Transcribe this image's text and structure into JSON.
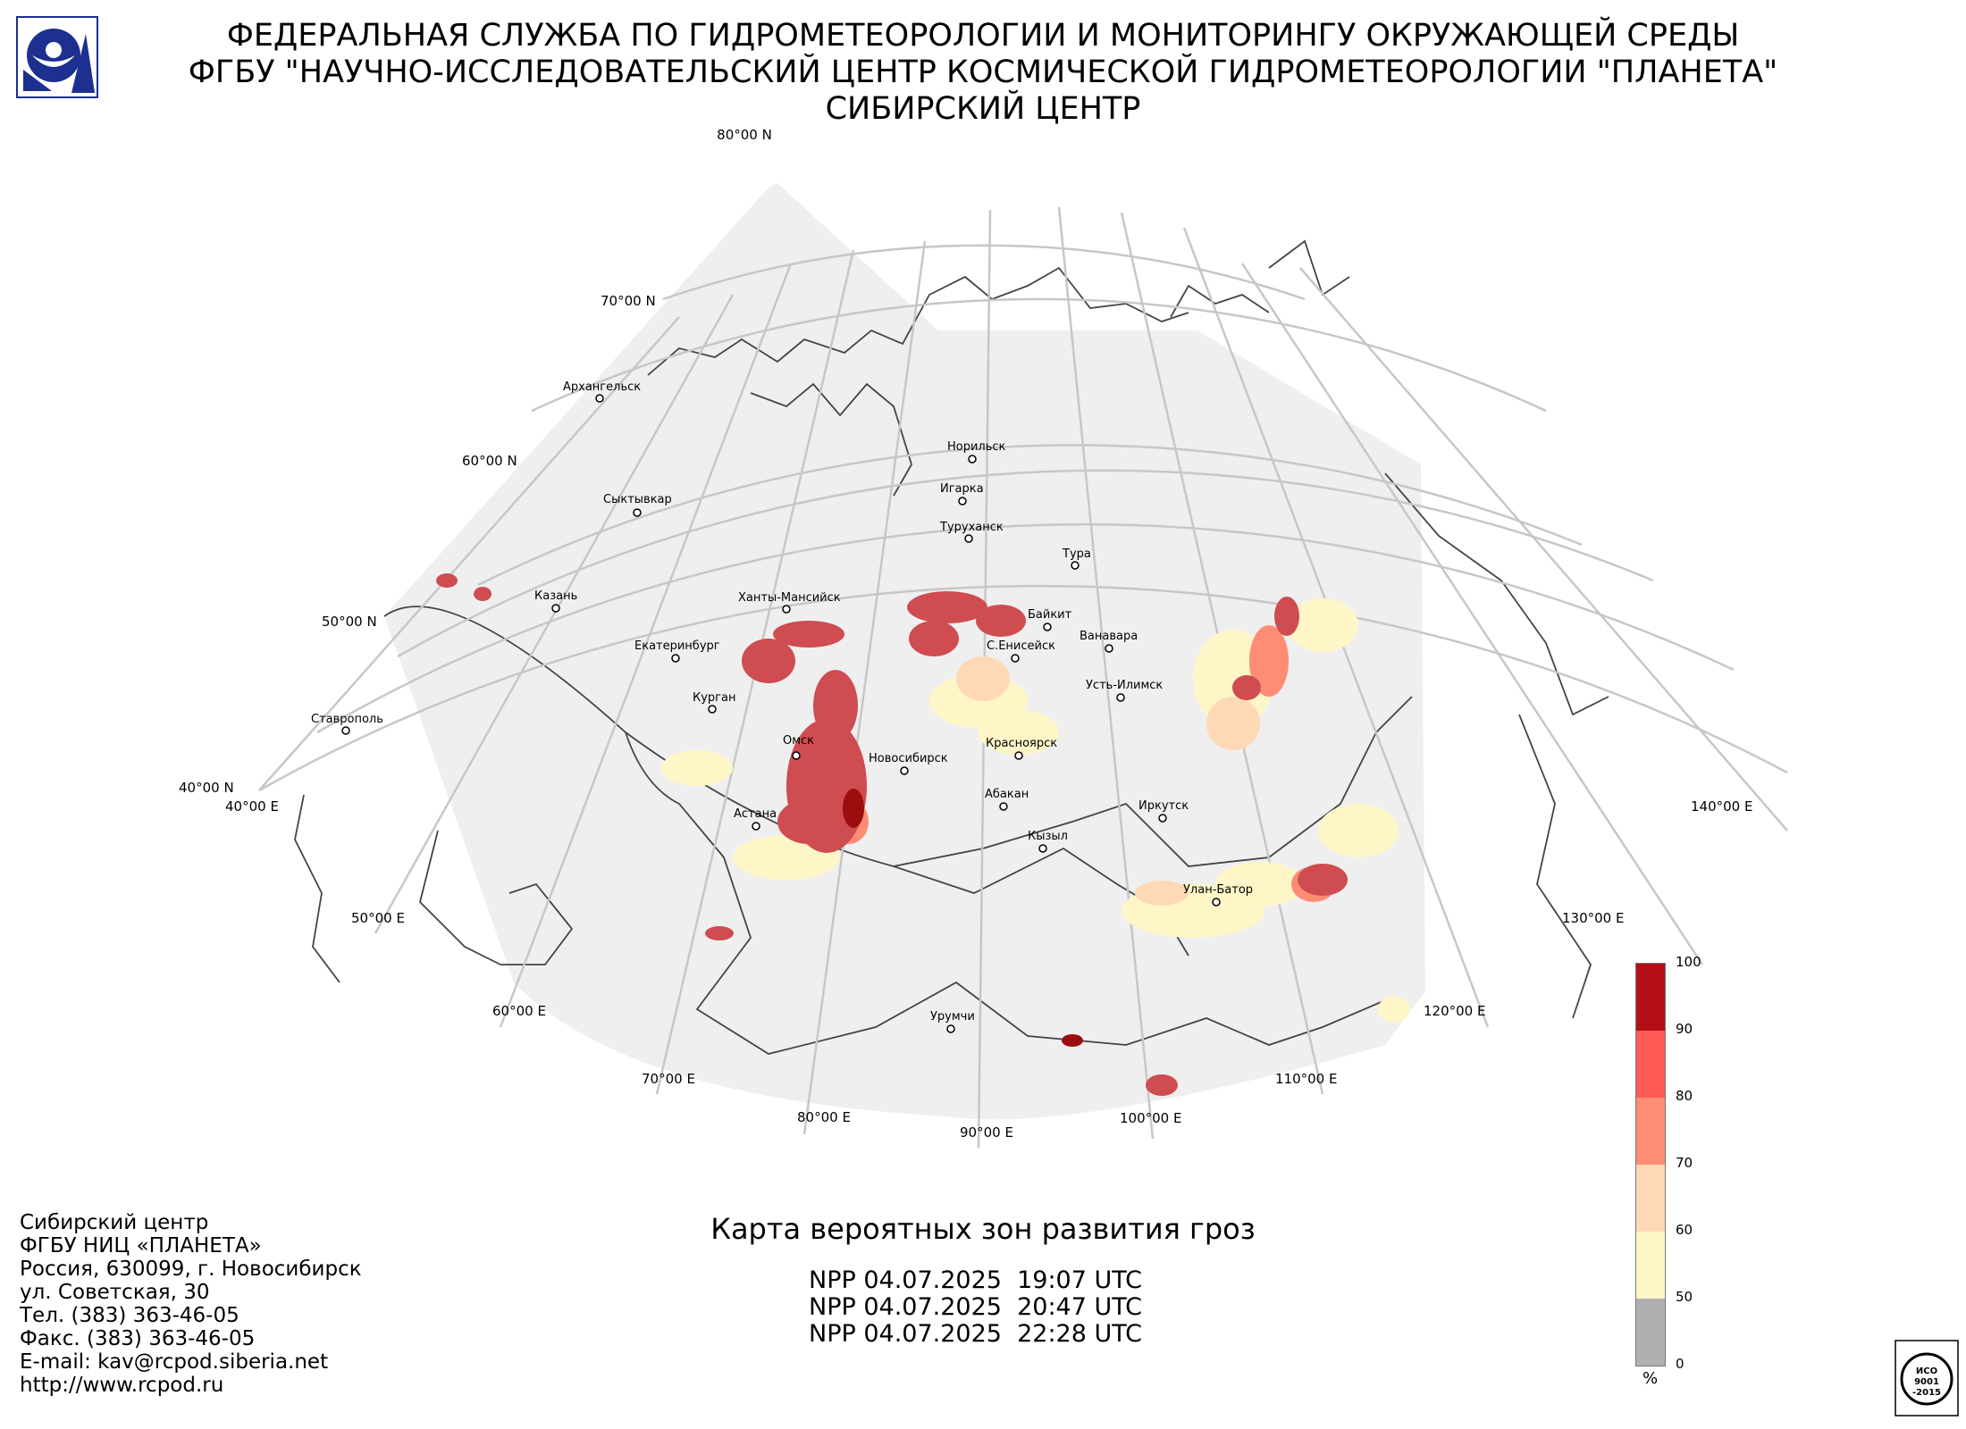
{
  "header": {
    "line1": "ФЕДЕРАЛЬНАЯ СЛУЖБА ПО ГИДРОМЕТЕОРОЛОГИИ И МОНИТОРИНГУ ОКРУЖАЮЩЕЙ СРЕДЫ",
    "line2": "ФГБУ \"НАУЧНО-ИССЛЕДОВАТЕЛЬСКИЙ ЦЕНТР КОСМИЧЕСКОЙ ГИДРОМЕТЕОРОЛОГИИ \"ПЛАНЕТА\"",
    "line3": "СИБИРСКИЙ ЦЕНТР"
  },
  "map": {
    "lat_labels": [
      "80°00 N",
      "70°00 N",
      "60°00 N",
      "50°00 N",
      "40°00 N"
    ],
    "lon_labels": [
      "40°00 E",
      "50°00 E",
      "60°00 E",
      "70°00 E",
      "80°00 E",
      "90°00 E",
      "100°00 E",
      "110°00 E",
      "120°00 E",
      "130°00 E",
      "140°00 E"
    ],
    "cities": [
      "Архангельск",
      "Сыктывкар",
      "Казань",
      "Екатеринбург",
      "Ставрополь",
      "Курган",
      "Ханты-Мансийск",
      "Омск",
      "Астана",
      "Новосибирск",
      "Норильск",
      "Игарка",
      "Туруханск",
      "Тура",
      "Байкит",
      "С.Енисейск",
      "Ванавара",
      "Усть-Илимск",
      "Красноярск",
      "Абакан",
      "Кызыл",
      "Иркутск",
      "Улан-Батор",
      "Урумчи"
    ]
  },
  "title": "Карта вероятных зон развития гроз",
  "passes": [
    "NPP 04.07.2025  19:07 UTC",
    "NPP 04.07.2025  20:47 UTC",
    "NPP 04.07.2025  22:28 UTC"
  ],
  "legend": {
    "unit": "%",
    "ticks": [
      "100",
      "90",
      "80",
      "70",
      "60",
      "50",
      "0"
    ],
    "colors": [
      "#b40f16",
      "#ff5b57",
      "#ff8c74",
      "#ffd9b5",
      "#fff6c8",
      "#b0b0b0"
    ]
  },
  "footer": {
    "lines": [
      "Сибирский центр",
      "ФГБУ НИЦ «ПЛАНЕТА»",
      "Россия, 630099, г. Новосибирск",
      "ул. Советская, 30",
      "Тел. (383) 363-46-05",
      "Факс. (383) 363-46-05",
      "E-mail: kav@rcpod.siberia.net",
      "http://www.rcpod.ru"
    ]
  },
  "logos": {
    "agency": "roshydromet-logo",
    "iso_text": [
      "ИСО",
      "9001",
      "-2015"
    ]
  }
}
